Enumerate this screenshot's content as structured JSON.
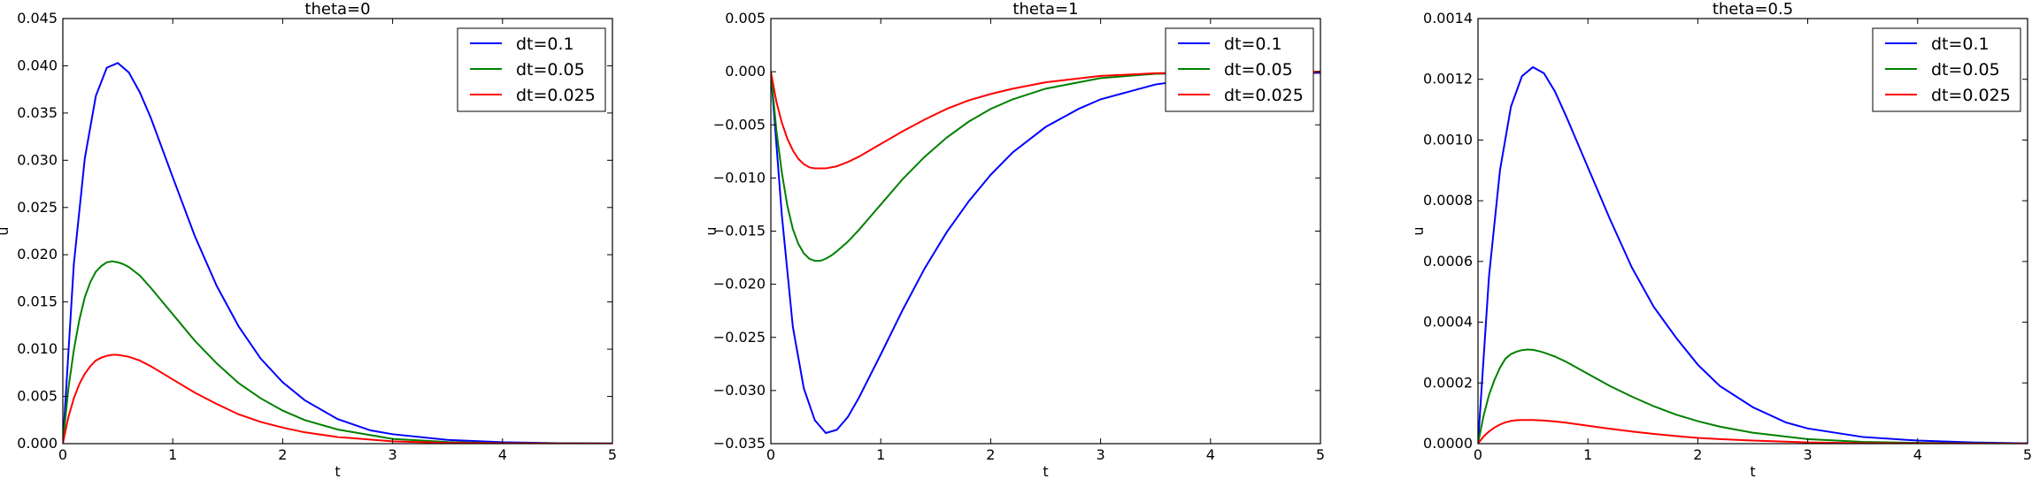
{
  "chart_data": [
    {
      "type": "line",
      "title": "theta=0",
      "xlabel": "t",
      "ylabel": "u",
      "xlim": [
        0,
        5
      ],
      "ylim": [
        0,
        0.045
      ],
      "xticks": [
        0,
        1,
        2,
        3,
        4,
        5
      ],
      "xtick_labels": [
        "0",
        "1",
        "2",
        "3",
        "4",
        "5"
      ],
      "yticks": [
        0,
        0.005,
        0.01,
        0.015,
        0.02,
        0.025,
        0.03,
        0.035,
        0.04,
        0.045
      ],
      "ytick_labels": [
        "0.000",
        "0.005",
        "0.010",
        "0.015",
        "0.020",
        "0.025",
        "0.030",
        "0.035",
        "0.040",
        "0.045"
      ],
      "legend": "top-right",
      "grid": false,
      "series": [
        {
          "name": "dt=0.1",
          "color": "#0000ff",
          "x": [
            0,
            0.1,
            0.2,
            0.3,
            0.4,
            0.5,
            0.6,
            0.7,
            0.8,
            1.0,
            1.2,
            1.4,
            1.6,
            1.8,
            2.0,
            2.2,
            2.5,
            2.8,
            3.0,
            3.5,
            4.0,
            4.5,
            5.0
          ],
          "y": [
            0,
            0.019,
            0.0302,
            0.0368,
            0.0398,
            0.0403,
            0.0393,
            0.0372,
            0.0345,
            0.0282,
            0.022,
            0.0167,
            0.0124,
            0.009,
            0.0065,
            0.0046,
            0.0026,
            0.0014,
            0.001,
            0.0004,
            0.00015,
            5e-05,
            2e-05
          ]
        },
        {
          "name": "dt=0.05",
          "color": "#008000",
          "x": [
            0,
            0.05,
            0.1,
            0.15,
            0.2,
            0.25,
            0.3,
            0.35,
            0.4,
            0.45,
            0.5,
            0.55,
            0.6,
            0.7,
            0.8,
            0.9,
            1.0,
            1.2,
            1.4,
            1.6,
            1.8,
            2.0,
            2.2,
            2.5,
            3.0,
            3.5,
            4.0,
            4.5,
            5.0
          ],
          "y": [
            0,
            0.0058,
            0.0099,
            0.0131,
            0.0155,
            0.0171,
            0.0182,
            0.0188,
            0.0192,
            0.0193,
            0.0192,
            0.019,
            0.0187,
            0.0178,
            0.0165,
            0.0151,
            0.0137,
            0.0109,
            0.0085,
            0.0064,
            0.0048,
            0.0035,
            0.0025,
            0.0015,
            0.0005,
            0.00017,
            5e-05,
            2e-05,
            1e-05
          ]
        },
        {
          "name": "dt=0.025",
          "color": "#ff0000",
          "x": [
            0,
            0.05,
            0.1,
            0.15,
            0.2,
            0.25,
            0.3,
            0.35,
            0.4,
            0.45,
            0.5,
            0.6,
            0.7,
            0.8,
            0.9,
            1.0,
            1.2,
            1.4,
            1.6,
            1.8,
            2.0,
            2.2,
            2.5,
            3.0,
            3.5,
            4.0,
            4.5,
            5.0
          ],
          "y": [
            0,
            0.0028,
            0.0048,
            0.0063,
            0.0074,
            0.0082,
            0.0088,
            0.0091,
            0.0093,
            0.0094,
            0.0094,
            0.0092,
            0.0088,
            0.0082,
            0.0075,
            0.0068,
            0.0054,
            0.0042,
            0.0031,
            0.0023,
            0.0017,
            0.0012,
            0.0007,
            0.00024,
            8e-05,
            3e-05,
            1e-05,
            0
          ]
        }
      ]
    },
    {
      "type": "line",
      "title": "theta=1",
      "xlabel": "t",
      "ylabel": "u",
      "xlim": [
        0,
        5
      ],
      "ylim": [
        -0.035,
        0.005
      ],
      "xticks": [
        0,
        1,
        2,
        3,
        4,
        5
      ],
      "xtick_labels": [
        "0",
        "1",
        "2",
        "3",
        "4",
        "5"
      ],
      "yticks": [
        -0.035,
        -0.03,
        -0.025,
        -0.02,
        -0.015,
        -0.01,
        -0.005,
        0,
        0.005
      ],
      "ytick_labels": [
        "−0.035",
        "−0.030",
        "−0.025",
        "−0.020",
        "−0.015",
        "−0.010",
        "−0.005",
        "0.000",
        "0.005"
      ],
      "legend": "top-right",
      "grid": false,
      "series": [
        {
          "name": "dt=0.1",
          "color": "#0000ff",
          "x": [
            0,
            0.1,
            0.2,
            0.3,
            0.4,
            0.5,
            0.6,
            0.7,
            0.8,
            1.0,
            1.2,
            1.4,
            1.6,
            1.8,
            2.0,
            2.2,
            2.5,
            2.8,
            3.0,
            3.5,
            4.0,
            4.5,
            5.0
          ],
          "y": [
            0,
            -0.0135,
            -0.024,
            -0.0298,
            -0.0328,
            -0.034,
            -0.0337,
            -0.0325,
            -0.0307,
            -0.0266,
            -0.0224,
            -0.0185,
            -0.0151,
            -0.0122,
            -0.0097,
            -0.0076,
            -0.0052,
            -0.0035,
            -0.0026,
            -0.0012,
            -0.0005,
            -0.0002,
            -0.0001
          ]
        },
        {
          "name": "dt=0.05",
          "color": "#008000",
          "x": [
            0,
            0.05,
            0.1,
            0.15,
            0.2,
            0.25,
            0.3,
            0.35,
            0.4,
            0.45,
            0.5,
            0.55,
            0.6,
            0.7,
            0.8,
            0.9,
            1.0,
            1.2,
            1.4,
            1.6,
            1.8,
            2.0,
            2.2,
            2.5,
            3.0,
            3.5,
            4.0,
            4.5,
            5.0
          ],
          "y": [
            0,
            -0.0055,
            -0.0095,
            -0.0126,
            -0.0148,
            -0.0162,
            -0.0171,
            -0.0176,
            -0.0178,
            -0.0178,
            -0.0176,
            -0.0173,
            -0.0169,
            -0.016,
            -0.0149,
            -0.0137,
            -0.0125,
            -0.0101,
            -0.008,
            -0.0062,
            -0.0047,
            -0.0035,
            -0.0026,
            -0.0016,
            -0.0006,
            -0.0002,
            -0.0001,
            -3e-05,
            -1e-05
          ]
        },
        {
          "name": "dt=0.025",
          "color": "#ff0000",
          "x": [
            0,
            0.05,
            0.1,
            0.15,
            0.2,
            0.25,
            0.3,
            0.35,
            0.4,
            0.45,
            0.5,
            0.6,
            0.7,
            0.8,
            0.9,
            1.0,
            1.2,
            1.4,
            1.6,
            1.8,
            2.0,
            2.2,
            2.5,
            3.0,
            3.5,
            4.0,
            4.5,
            5.0
          ],
          "y": [
            0,
            -0.0028,
            -0.0048,
            -0.0063,
            -0.0074,
            -0.0082,
            -0.0087,
            -0.009,
            -0.0091,
            -0.0091,
            -0.0091,
            -0.0089,
            -0.0085,
            -0.008,
            -0.0074,
            -0.0068,
            -0.0056,
            -0.0045,
            -0.0035,
            -0.0027,
            -0.0021,
            -0.0016,
            -0.001,
            -0.0004,
            -0.00015,
            -5e-05,
            -2e-05,
            -1e-05
          ]
        }
      ]
    },
    {
      "type": "line",
      "title": "theta=0.5",
      "xlabel": "t",
      "ylabel": "u",
      "xlim": [
        0,
        5
      ],
      "ylim": [
        0,
        0.0014
      ],
      "xticks": [
        0,
        1,
        2,
        3,
        4,
        5
      ],
      "xtick_labels": [
        "0",
        "1",
        "2",
        "3",
        "4",
        "5"
      ],
      "yticks": [
        0,
        0.0002,
        0.0004,
        0.0006,
        0.0008,
        0.001,
        0.0012,
        0.0014
      ],
      "ytick_labels": [
        "0.0000",
        "0.0002",
        "0.0004",
        "0.0006",
        "0.0008",
        "0.0010",
        "0.0012",
        "0.0014"
      ],
      "legend": "top-right",
      "grid": false,
      "series": [
        {
          "name": "dt=0.1",
          "color": "#0000ff",
          "x": [
            0,
            0.1,
            0.2,
            0.3,
            0.4,
            0.5,
            0.6,
            0.7,
            0.8,
            1.0,
            1.2,
            1.4,
            1.6,
            1.8,
            2.0,
            2.2,
            2.5,
            2.8,
            3.0,
            3.5,
            4.0,
            4.5,
            5.0
          ],
          "y": [
            0,
            0.00055,
            0.0009,
            0.00111,
            0.00121,
            0.00124,
            0.00122,
            0.00116,
            0.00108,
            0.00091,
            0.00074,
            0.00058,
            0.00045,
            0.00035,
            0.00026,
            0.00019,
            0.00012,
            7e-05,
            5e-05,
            2.2e-05,
            1e-05,
            4e-06,
            1e-06
          ]
        },
        {
          "name": "dt=0.05",
          "color": "#008000",
          "x": [
            0,
            0.05,
            0.1,
            0.15,
            0.2,
            0.25,
            0.3,
            0.35,
            0.4,
            0.45,
            0.5,
            0.55,
            0.6,
            0.7,
            0.8,
            0.9,
            1.0,
            1.2,
            1.4,
            1.6,
            1.8,
            2.0,
            2.2,
            2.5,
            3.0,
            3.5,
            4.0,
            4.5,
            5.0
          ],
          "y": [
            0,
            9e-05,
            0.00016,
            0.00021,
            0.00025,
            0.00028,
            0.000295,
            0.000303,
            0.000308,
            0.00031,
            0.000309,
            0.000305,
            0.0003,
            0.000287,
            0.00027,
            0.00025,
            0.00023,
            0.00019,
            0.000155,
            0.000123,
            9.6e-05,
            7.4e-05,
            5.6e-05,
            3.6e-05,
            1.5e-05,
            6e-06,
            2.5e-06,
            1e-06,
            4e-07
          ]
        },
        {
          "name": "dt=0.025",
          "color": "#ff0000",
          "x": [
            0,
            0.05,
            0.1,
            0.15,
            0.2,
            0.25,
            0.3,
            0.35,
            0.4,
            0.45,
            0.5,
            0.6,
            0.7,
            0.8,
            0.9,
            1.0,
            1.2,
            1.4,
            1.6,
            1.8,
            2.0,
            2.2,
            2.5,
            3.0,
            3.5,
            4.0,
            4.5,
            5.0
          ],
          "y": [
            0,
            2.3e-05,
            4e-05,
            5.3e-05,
            6.3e-05,
            7e-05,
            7.5e-05,
            7.7e-05,
            7.8e-05,
            7.8e-05,
            7.8e-05,
            7.6e-05,
            7.3e-05,
            6.9e-05,
            6.4e-05,
            5.9e-05,
            4.9e-05,
            4e-05,
            3.2e-05,
            2.5e-05,
            1.9e-05,
            1.5e-05,
            1e-05,
            4e-06,
            1.6e-06,
            6e-07,
            2e-07,
            1e-07
          ]
        }
      ]
    }
  ]
}
